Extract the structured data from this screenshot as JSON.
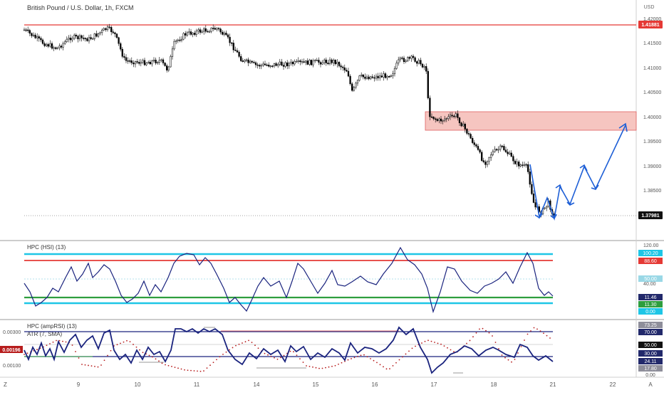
{
  "header": {
    "symbol_title": "British Pound / U.S. Dollar, 1h, FXCM"
  },
  "colors": {
    "accent_red": "#e53935",
    "zone_fill": "#f4b6b0",
    "arrow_blue": "#1e5fd6",
    "osc_navy": "#1a237e",
    "level_cyan": "#1ec6e6",
    "level_green": "#2e9e3e",
    "navy_bg": "#22296b",
    "grey_bg": "#8e8e9a"
  },
  "price_axis": {
    "currency": "USD",
    "ticks": [
      "1.42000",
      "1.41500",
      "1.41000",
      "1.40500",
      "1.40000",
      "1.39500",
      "1.39000",
      "1.38500"
    ],
    "resistance_label": "1.41881",
    "current_label": "1.37981"
  },
  "hsi_pane": {
    "title": "HPC (HSI) (13)",
    "ticks": [
      "120.00",
      "40.00",
      "0.00"
    ],
    "badges": [
      "100.20",
      "88.60",
      "50.00",
      "11.46",
      "11.30",
      "0.00"
    ]
  },
  "amp_pane": {
    "title": "HPC (ampRSI) (13)",
    "subtitle": "ATR (7, SMA)",
    "left_ticks": [
      "0.00300",
      "0.00100"
    ],
    "left_badge": "0.00196",
    "badges": [
      "73.25",
      "70.00",
      "50.00",
      "30.00",
      "24.11",
      "17.80",
      "0.00"
    ]
  },
  "time_axis": {
    "labels": [
      "9",
      "10",
      "11",
      "14",
      "15",
      "16",
      "17",
      "18",
      "21",
      "22"
    ]
  },
  "corner": {
    "left": "Z",
    "right": "A"
  }
}
